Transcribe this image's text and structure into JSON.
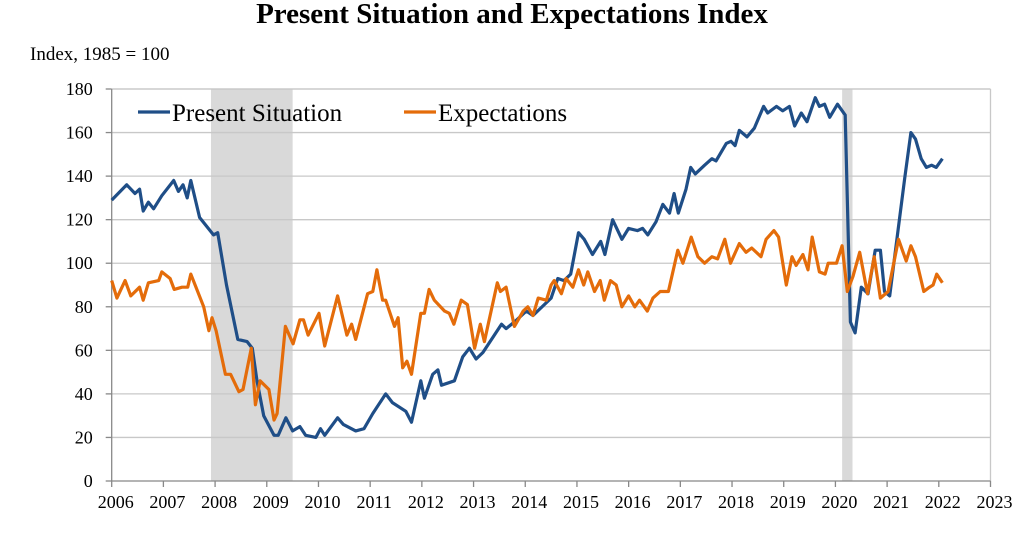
{
  "chart_data": {
    "type": "line",
    "title": "Present Situation and Expectations Index",
    "ylabel": "Index, 1985 = 100",
    "xlabel": "",
    "xlim": [
      2006,
      2023
    ],
    "ylim": [
      0,
      180
    ],
    "yticks": [
      0,
      20,
      40,
      60,
      80,
      100,
      120,
      140,
      160,
      180
    ],
    "xticks": [
      2006,
      2007,
      2008,
      2009,
      2010,
      2011,
      2012,
      2013,
      2014,
      2015,
      2016,
      2017,
      2018,
      2019,
      2020,
      2021,
      2022,
      2023
    ],
    "grid": true,
    "legend_placement": "top-left",
    "recessions": [
      [
        2007.92,
        2009.5
      ],
      [
        2020.13,
        2020.33
      ]
    ],
    "recession_color": "#d9d9d9",
    "series": [
      {
        "name": "Present Situation",
        "color": "#1f4e87",
        "points": [
          [
            2006.0,
            129
          ],
          [
            2006.29,
            136
          ],
          [
            2006.45,
            132
          ],
          [
            2006.54,
            134
          ],
          [
            2006.61,
            124
          ],
          [
            2006.71,
            128
          ],
          [
            2006.81,
            125
          ],
          [
            2006.97,
            131
          ],
          [
            2007.2,
            138
          ],
          [
            2007.29,
            133
          ],
          [
            2007.38,
            136
          ],
          [
            2007.46,
            130
          ],
          [
            2007.53,
            138
          ],
          [
            2007.7,
            121
          ],
          [
            2007.97,
            113
          ],
          [
            2008.05,
            114
          ],
          [
            2008.22,
            90
          ],
          [
            2008.44,
            65
          ],
          [
            2008.62,
            64
          ],
          [
            2008.72,
            61
          ],
          [
            2008.81,
            46
          ],
          [
            2008.94,
            30
          ],
          [
            2009.14,
            21
          ],
          [
            2009.22,
            21
          ],
          [
            2009.37,
            29
          ],
          [
            2009.5,
            23
          ],
          [
            2009.64,
            25
          ],
          [
            2009.75,
            21
          ],
          [
            2009.95,
            20
          ],
          [
            2010.04,
            24
          ],
          [
            2010.12,
            21
          ],
          [
            2010.37,
            29
          ],
          [
            2010.48,
            26
          ],
          [
            2010.72,
            23
          ],
          [
            2010.88,
            24
          ],
          [
            2011.05,
            31
          ],
          [
            2011.3,
            40
          ],
          [
            2011.43,
            36
          ],
          [
            2011.69,
            32
          ],
          [
            2011.8,
            27
          ],
          [
            2011.98,
            46
          ],
          [
            2012.05,
            38
          ],
          [
            2012.21,
            49
          ],
          [
            2012.31,
            51
          ],
          [
            2012.38,
            44
          ],
          [
            2012.63,
            46
          ],
          [
            2012.79,
            57
          ],
          [
            2012.92,
            61
          ],
          [
            2013.05,
            56
          ],
          [
            2013.18,
            59
          ],
          [
            2013.54,
            72
          ],
          [
            2013.63,
            70
          ],
          [
            2013.79,
            73
          ],
          [
            2014.02,
            78
          ],
          [
            2014.15,
            76
          ],
          [
            2014.5,
            84
          ],
          [
            2014.63,
            93
          ],
          [
            2014.75,
            92
          ],
          [
            2014.88,
            95
          ],
          [
            2015.03,
            114
          ],
          [
            2015.14,
            111
          ],
          [
            2015.3,
            104
          ],
          [
            2015.46,
            110
          ],
          [
            2015.54,
            104
          ],
          [
            2015.69,
            120
          ],
          [
            2015.87,
            111
          ],
          [
            2016.0,
            116
          ],
          [
            2016.17,
            115
          ],
          [
            2016.27,
            116
          ],
          [
            2016.37,
            113
          ],
          [
            2016.53,
            119
          ],
          [
            2016.66,
            127
          ],
          [
            2016.79,
            123
          ],
          [
            2016.88,
            132
          ],
          [
            2016.96,
            123
          ],
          [
            2017.11,
            134
          ],
          [
            2017.2,
            144
          ],
          [
            2017.29,
            141
          ],
          [
            2017.47,
            145
          ],
          [
            2017.61,
            148
          ],
          [
            2017.69,
            147
          ],
          [
            2017.89,
            155
          ],
          [
            2017.98,
            156
          ],
          [
            2018.06,
            154
          ],
          [
            2018.14,
            161
          ],
          [
            2018.29,
            158
          ],
          [
            2018.43,
            162
          ],
          [
            2018.61,
            172
          ],
          [
            2018.69,
            169
          ],
          [
            2018.86,
            172
          ],
          [
            2018.98,
            170
          ],
          [
            2019.11,
            172
          ],
          [
            2019.21,
            163
          ],
          [
            2019.34,
            169
          ],
          [
            2019.45,
            165
          ],
          [
            2019.61,
            176
          ],
          [
            2019.69,
            172
          ],
          [
            2019.79,
            173
          ],
          [
            2019.89,
            167
          ],
          [
            2020.04,
            173
          ],
          [
            2020.19,
            168
          ],
          [
            2020.29,
            73
          ],
          [
            2020.38,
            68
          ],
          [
            2020.5,
            89
          ],
          [
            2020.63,
            86
          ],
          [
            2020.77,
            106
          ],
          [
            2020.87,
            106
          ],
          [
            2020.95,
            87
          ],
          [
            2021.05,
            85
          ],
          [
            2021.21,
            115
          ],
          [
            2021.34,
            139
          ],
          [
            2021.46,
            160
          ],
          [
            2021.55,
            157
          ],
          [
            2021.66,
            148
          ],
          [
            2021.76,
            144
          ],
          [
            2021.86,
            145
          ],
          [
            2021.95,
            144
          ],
          [
            2022.07,
            148
          ]
        ]
      },
      {
        "name": "Expectations",
        "color": "#e46c0a",
        "points": [
          [
            2006.0,
            92
          ],
          [
            2006.1,
            84
          ],
          [
            2006.26,
            92
          ],
          [
            2006.37,
            85
          ],
          [
            2006.54,
            89
          ],
          [
            2006.61,
            83
          ],
          [
            2006.71,
            91
          ],
          [
            2006.91,
            92
          ],
          [
            2006.97,
            96
          ],
          [
            2007.13,
            93
          ],
          [
            2007.21,
            88
          ],
          [
            2007.36,
            89
          ],
          [
            2007.47,
            89
          ],
          [
            2007.53,
            95
          ],
          [
            2007.78,
            80
          ],
          [
            2007.88,
            69
          ],
          [
            2007.94,
            75
          ],
          [
            2008.02,
            69
          ],
          [
            2008.2,
            49
          ],
          [
            2008.3,
            49
          ],
          [
            2008.46,
            41
          ],
          [
            2008.54,
            42
          ],
          [
            2008.7,
            61
          ],
          [
            2008.78,
            35
          ],
          [
            2008.87,
            46
          ],
          [
            2009.04,
            42
          ],
          [
            2009.14,
            28
          ],
          [
            2009.2,
            31
          ],
          [
            2009.36,
            71
          ],
          [
            2009.51,
            63
          ],
          [
            2009.64,
            74
          ],
          [
            2009.71,
            74
          ],
          [
            2009.8,
            67
          ],
          [
            2010.01,
            77
          ],
          [
            2010.12,
            62
          ],
          [
            2010.37,
            85
          ],
          [
            2010.55,
            67
          ],
          [
            2010.64,
            72
          ],
          [
            2010.72,
            65
          ],
          [
            2010.95,
            86
          ],
          [
            2011.05,
            87
          ],
          [
            2011.13,
            97
          ],
          [
            2011.24,
            83
          ],
          [
            2011.3,
            83
          ],
          [
            2011.47,
            71
          ],
          [
            2011.54,
            75
          ],
          [
            2011.63,
            52
          ],
          [
            2011.71,
            55
          ],
          [
            2011.8,
            49
          ],
          [
            2011.98,
            77
          ],
          [
            2012.05,
            77
          ],
          [
            2012.14,
            88
          ],
          [
            2012.24,
            83
          ],
          [
            2012.44,
            78
          ],
          [
            2012.53,
            77
          ],
          [
            2012.62,
            72
          ],
          [
            2012.76,
            83
          ],
          [
            2012.88,
            81
          ],
          [
            2013.02,
            61
          ],
          [
            2013.13,
            72
          ],
          [
            2013.21,
            64
          ],
          [
            2013.46,
            91
          ],
          [
            2013.52,
            87
          ],
          [
            2013.63,
            89
          ],
          [
            2013.79,
            71
          ],
          [
            2013.96,
            78
          ],
          [
            2014.05,
            80
          ],
          [
            2014.15,
            76
          ],
          [
            2014.25,
            84
          ],
          [
            2014.41,
            83
          ],
          [
            2014.5,
            90
          ],
          [
            2014.56,
            92
          ],
          [
            2014.7,
            86
          ],
          [
            2014.79,
            93
          ],
          [
            2014.92,
            89
          ],
          [
            2015.03,
            97
          ],
          [
            2015.13,
            90
          ],
          [
            2015.21,
            96
          ],
          [
            2015.34,
            87
          ],
          [
            2015.45,
            92
          ],
          [
            2015.53,
            83
          ],
          [
            2015.65,
            92
          ],
          [
            2015.76,
            90
          ],
          [
            2015.87,
            80
          ],
          [
            2016.0,
            85
          ],
          [
            2016.12,
            80
          ],
          [
            2016.21,
            83
          ],
          [
            2016.36,
            78
          ],
          [
            2016.47,
            84
          ],
          [
            2016.61,
            87
          ],
          [
            2016.77,
            87
          ],
          [
            2016.95,
            106
          ],
          [
            2017.05,
            100
          ],
          [
            2017.21,
            112
          ],
          [
            2017.34,
            103
          ],
          [
            2017.47,
            100
          ],
          [
            2017.61,
            103
          ],
          [
            2017.72,
            102
          ],
          [
            2017.86,
            111
          ],
          [
            2017.97,
            100
          ],
          [
            2018.14,
            109
          ],
          [
            2018.27,
            105
          ],
          [
            2018.38,
            107
          ],
          [
            2018.56,
            103
          ],
          [
            2018.66,
            111
          ],
          [
            2018.81,
            115
          ],
          [
            2018.9,
            112
          ],
          [
            2019.05,
            90
          ],
          [
            2019.16,
            103
          ],
          [
            2019.24,
            99
          ],
          [
            2019.37,
            104
          ],
          [
            2019.47,
            97
          ],
          [
            2019.55,
            112
          ],
          [
            2019.69,
            96
          ],
          [
            2019.8,
            95
          ],
          [
            2019.86,
            100
          ],
          [
            2020.02,
            100
          ],
          [
            2020.13,
            108
          ],
          [
            2020.23,
            87
          ],
          [
            2020.34,
            94
          ],
          [
            2020.47,
            105
          ],
          [
            2020.62,
            86
          ],
          [
            2020.75,
            103
          ],
          [
            2020.87,
            84
          ],
          [
            2021.02,
            87
          ],
          [
            2021.22,
            111
          ],
          [
            2021.37,
            101
          ],
          [
            2021.46,
            108
          ],
          [
            2021.55,
            103
          ],
          [
            2021.71,
            87
          ],
          [
            2021.82,
            89
          ],
          [
            2021.89,
            90
          ],
          [
            2021.96,
            95
          ],
          [
            2022.07,
            91
          ]
        ]
      }
    ]
  }
}
